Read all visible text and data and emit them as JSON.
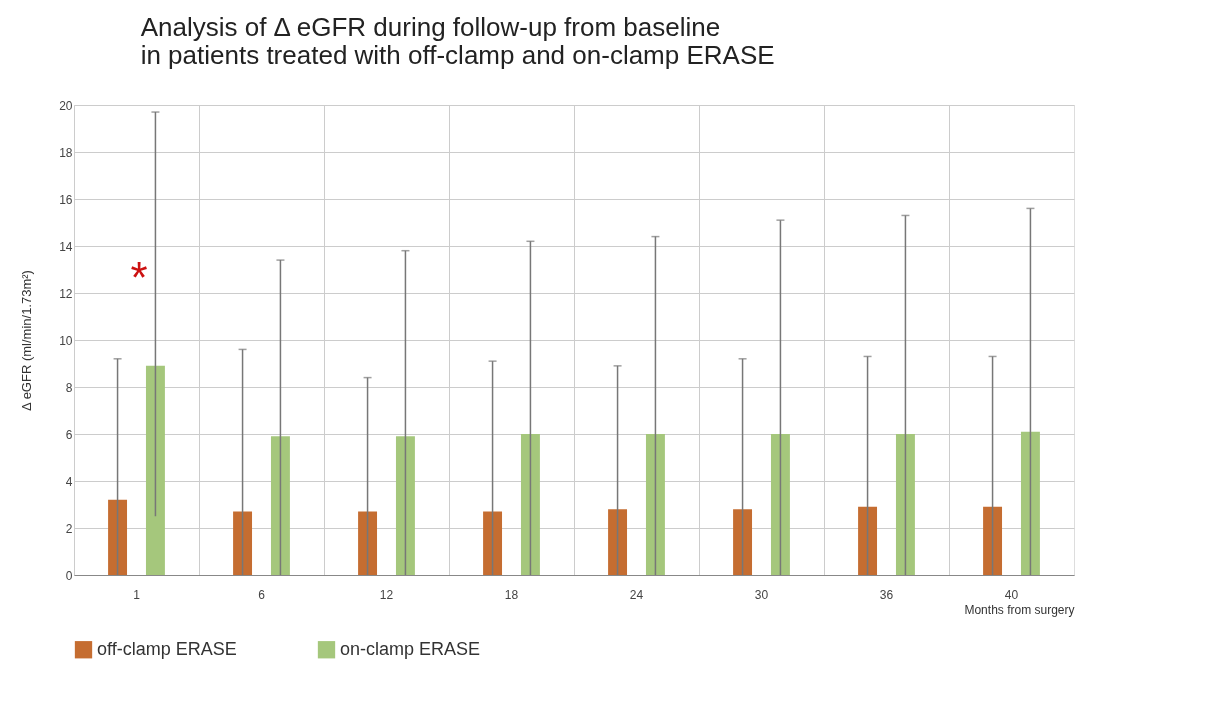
{
  "chart_data": {
    "type": "bar",
    "title": [
      "Analysis of Δ eGFR during follow-up from baseline",
      "in patients treated with off-clamp and on-clamp ERASE"
    ],
    "xlabel": "Months from surgery",
    "ylabel": "Δ eGFR (ml/min/1.73m²)",
    "categories": [
      "1",
      "6",
      "12",
      "18",
      "24",
      "30",
      "36",
      "40"
    ],
    "series": [
      {
        "name": "off-clamp ERASE",
        "color": "#c56d31",
        "values": [
          3.2,
          2.7,
          2.7,
          2.7,
          2.8,
          2.8,
          2.9,
          2.9
        ],
        "errors": [
          [
            0,
            9.2
          ],
          [
            0,
            9.6
          ],
          [
            0,
            8.4
          ],
          [
            0,
            9.1
          ],
          [
            0,
            8.9
          ],
          [
            0,
            9.2
          ],
          [
            0,
            9.3
          ],
          [
            0,
            9.3
          ]
        ]
      },
      {
        "name": "on-clamp ERASE",
        "color": "#a5c77c",
        "values": [
          8.9,
          5.9,
          5.9,
          6.0,
          6.0,
          6.0,
          6.0,
          6.1
        ],
        "errors": [
          [
            2.5,
            19.7
          ],
          [
            0,
            13.4
          ],
          [
            0,
            13.8
          ],
          [
            0,
            14.2
          ],
          [
            0,
            14.4
          ],
          [
            0,
            15.1
          ],
          [
            0,
            15.3
          ],
          [
            0,
            15.6
          ]
        ]
      }
    ],
    "ylim": [
      0,
      20
    ],
    "yticks": [
      0,
      2,
      4,
      6,
      8,
      10,
      12,
      14,
      16,
      18,
      20
    ],
    "grid": true,
    "legend": "bottom",
    "annotations": [
      "*"
    ]
  }
}
